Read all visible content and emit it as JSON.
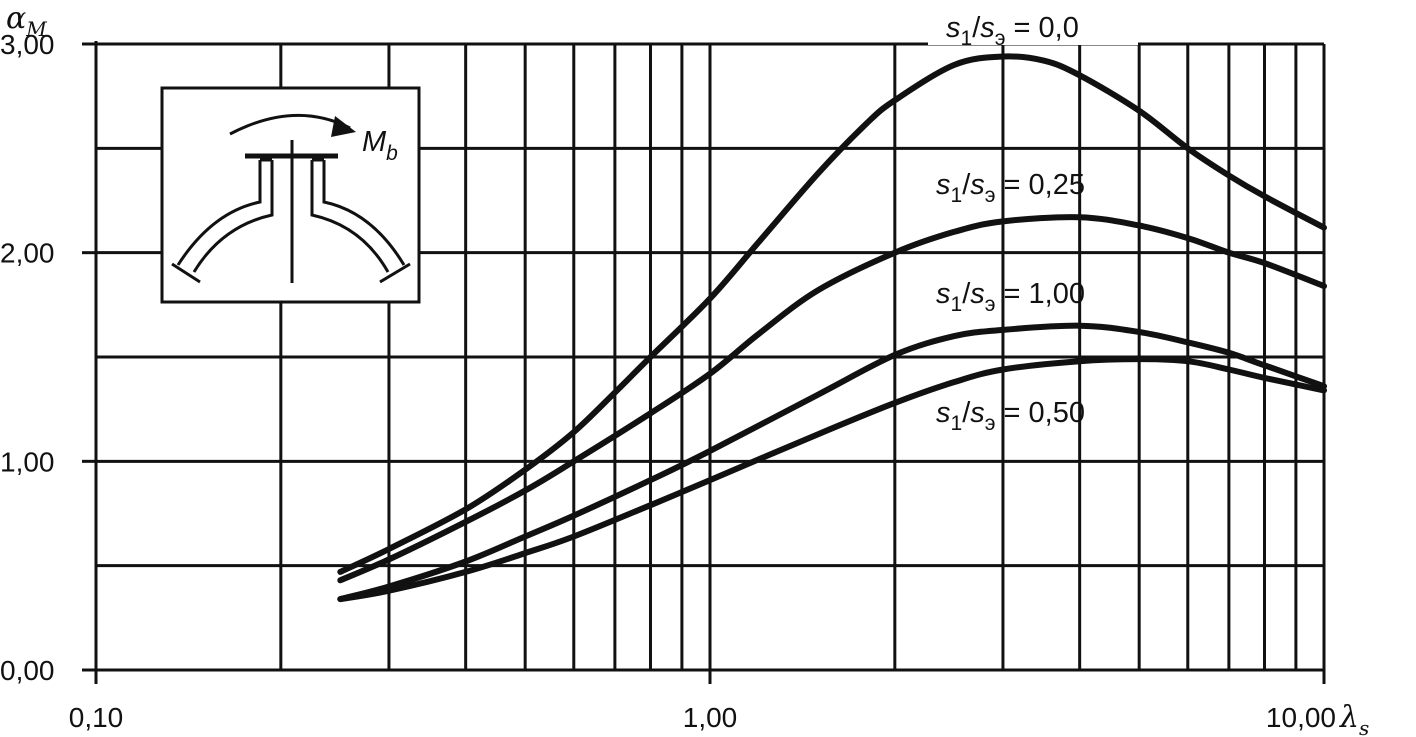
{
  "chart_data": {
    "type": "line",
    "xscale": "log",
    "xlim": [
      0.1,
      10
    ],
    "ylim": [
      0,
      3
    ],
    "grid": true,
    "ylabel": "αM",
    "xlabel": "λs",
    "xticks": [
      0.1,
      1,
      10
    ],
    "xtick_labels": [
      "0,10",
      "1,00",
      "10,00"
    ],
    "yticks": [
      0,
      1,
      2,
      3
    ],
    "ytick_labels": [
      "0,00",
      "1,00",
      "2,00",
      "3,00"
    ],
    "inset_label": "Mb",
    "series": [
      {
        "name": "s1/sэ = 0,0",
        "label_ratio": "0,0",
        "x": [
          0.25,
          0.3,
          0.4,
          0.5,
          0.6,
          0.7,
          0.8,
          1.0,
          1.2,
          1.5,
          1.8,
          2.0,
          2.5,
          3.0,
          3.5,
          4.0,
          5.0,
          6.0,
          7.0,
          8.0,
          10.0
        ],
        "y": [
          0.47,
          0.58,
          0.77,
          0.96,
          1.14,
          1.33,
          1.5,
          1.78,
          2.05,
          2.38,
          2.62,
          2.73,
          2.9,
          2.94,
          2.92,
          2.85,
          2.68,
          2.5,
          2.37,
          2.27,
          2.12
        ]
      },
      {
        "name": "s1/sэ = 0,25",
        "label_ratio": "0,25",
        "x": [
          0.25,
          0.3,
          0.4,
          0.5,
          0.6,
          0.8,
          1.0,
          1.2,
          1.5,
          2.0,
          2.5,
          3.0,
          4.0,
          5.0,
          6.0,
          7.0,
          8.0,
          10.0
        ],
        "y": [
          0.43,
          0.53,
          0.71,
          0.86,
          1.0,
          1.23,
          1.42,
          1.61,
          1.82,
          2.0,
          2.1,
          2.15,
          2.17,
          2.13,
          2.07,
          2.0,
          1.95,
          1.84
        ]
      },
      {
        "name": "s1/sэ = 1,00",
        "label_ratio": "1,00",
        "x": [
          0.25,
          0.3,
          0.4,
          0.5,
          0.6,
          0.8,
          1.0,
          1.5,
          2.0,
          2.5,
          3.0,
          4.0,
          5.0,
          6.0,
          7.0,
          8.0,
          10.0
        ],
        "y": [
          0.34,
          0.4,
          0.52,
          0.64,
          0.74,
          0.91,
          1.05,
          1.32,
          1.51,
          1.6,
          1.63,
          1.65,
          1.62,
          1.57,
          1.52,
          1.46,
          1.36
        ]
      },
      {
        "name": "s1/sэ = 0,50",
        "label_ratio": "0,50",
        "x": [
          0.25,
          0.3,
          0.4,
          0.5,
          0.6,
          0.8,
          1.0,
          1.5,
          2.0,
          2.5,
          3.0,
          4.0,
          5.0,
          6.0,
          7.0,
          8.0,
          10.0
        ],
        "y": [
          0.34,
          0.38,
          0.47,
          0.56,
          0.64,
          0.79,
          0.91,
          1.13,
          1.28,
          1.38,
          1.44,
          1.48,
          1.49,
          1.48,
          1.44,
          1.4,
          1.34
        ]
      }
    ]
  }
}
